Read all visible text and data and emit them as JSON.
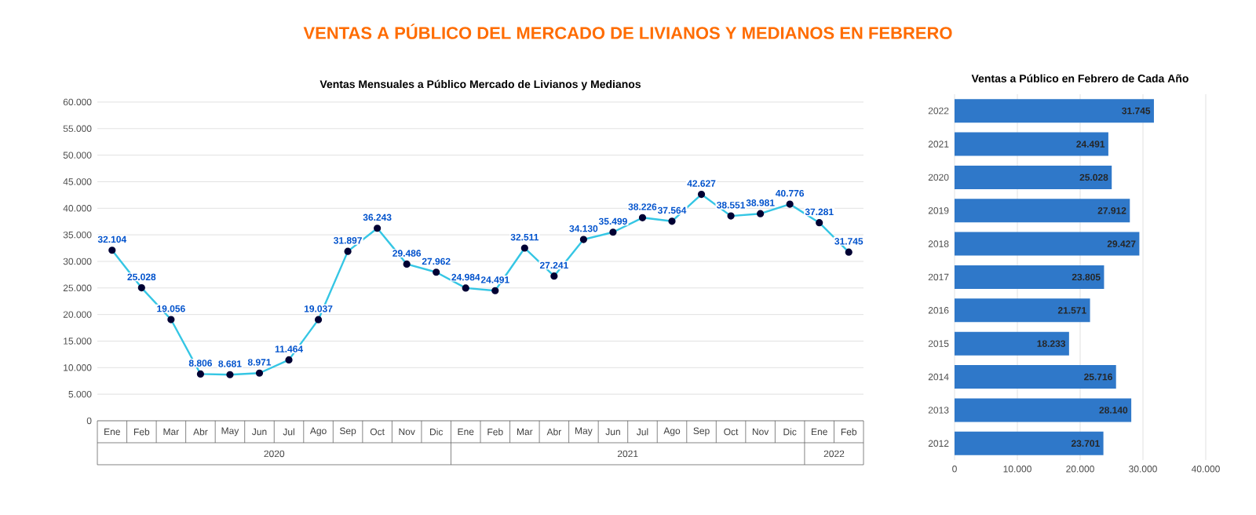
{
  "chart_data": [
    {
      "type": "line",
      "title": "VENTAS A PÚBLICO DEL MERCADO DE LIVIANOS Y MEDIANOS EN FEBRERO",
      "subtitle": "Ventas Mensuales a Público Mercado de Livianos y Medianos",
      "categories": [
        "Ene",
        "Feb",
        "Mar",
        "Abr",
        "May",
        "Jun",
        "Jul",
        "Ago",
        "Sep",
        "Oct",
        "Nov",
        "Dic",
        "Ene",
        "Feb",
        "Mar",
        "Abr",
        "May",
        "Jun",
        "Jul",
        "Ago",
        "Sep",
        "Oct",
        "Nov",
        "Dic",
        "Ene",
        "Feb"
      ],
      "annotations": [
        "2020",
        "2021",
        "2022"
      ],
      "values": [
        32104,
        25028,
        19056,
        8806,
        8681,
        8971,
        11464,
        19037,
        31897,
        36243,
        29486,
        27962,
        24984,
        24491,
        32511,
        27241,
        34130,
        35499,
        38226,
        37564,
        42627,
        38551,
        38981,
        40776,
        37281,
        31745
      ],
      "value_labels": [
        "32.104",
        "25.028",
        "19.056",
        "8.806",
        "8.681",
        "8.971",
        "11.464",
        "19.037",
        "31.897",
        "36.243",
        "29.486",
        "27.962",
        "24.984",
        "24.491",
        "32.511",
        "27.241",
        "34.130",
        "35.499",
        "38.226",
        "37.564",
        "42.627",
        "38.551",
        "38.981",
        "40.776",
        "37.281",
        "31.745"
      ],
      "color": "#35c6e4",
      "marker": "circle",
      "grid": "y",
      "ylim": [
        0,
        60000
      ],
      "yticks": [
        {
          "value": 0,
          "label": "0"
        },
        {
          "value": 5000,
          "label": "5.000"
        },
        {
          "value": 10000,
          "label": "10.000"
        },
        {
          "value": 15000,
          "label": "15.000"
        },
        {
          "value": 20000,
          "label": "20.000"
        },
        {
          "value": 25000,
          "label": "25.000"
        },
        {
          "value": 30000,
          "label": "30.000"
        },
        {
          "value": 35000,
          "label": "35.000"
        },
        {
          "value": 40000,
          "label": "40.000"
        },
        {
          "value": 45000,
          "label": "45.000"
        },
        {
          "value": 50000,
          "label": "50.000"
        },
        {
          "value": 55000,
          "label": "55.000"
        },
        {
          "value": 60000,
          "label": "60.000"
        }
      ]
    },
    {
      "type": "bar",
      "orientation": "horizontal",
      "title": "Ventas a Público en Febrero de Cada Año",
      "categories": [
        "2022",
        "2021",
        "2020",
        "2019",
        "2018",
        "2017",
        "2016",
        "2015",
        "2014",
        "2013",
        "2012"
      ],
      "values": [
        31745,
        24491,
        25028,
        27912,
        29427,
        23805,
        21571,
        18233,
        25716,
        28140,
        23701
      ],
      "value_labels": [
        "31.745",
        "24.491",
        "25.028",
        "27.912",
        "29.427",
        "23.805",
        "21.571",
        "18.233",
        "25.716",
        "28.140",
        "23.701"
      ],
      "color": "#2f78c9",
      "grid": "x",
      "xlim": [
        0,
        40000
      ],
      "xticks": [
        {
          "value": 0,
          "label": "0"
        },
        {
          "value": 10000,
          "label": "10.000"
        },
        {
          "value": 20000,
          "label": "20.000"
        },
        {
          "value": 30000,
          "label": "30.000"
        },
        {
          "value": 40000,
          "label": "40.000"
        }
      ]
    }
  ]
}
